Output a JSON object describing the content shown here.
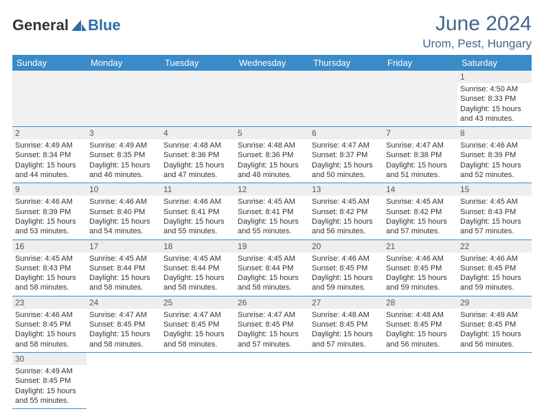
{
  "logo": {
    "text_a": "General",
    "text_b": "Blue"
  },
  "header": {
    "month_title": "June 2024",
    "location": "Urom, Pest, Hungary"
  },
  "colors": {
    "header_bg": "#3b8bc9",
    "header_text": "#ffffff",
    "title_color": "#40658a",
    "daynum_bg": "#eeeeee",
    "cell_border": "#3b8bc9",
    "empty_bg": "#f1f1f1"
  },
  "weekdays": [
    "Sunday",
    "Monday",
    "Tuesday",
    "Wednesday",
    "Thursday",
    "Friday",
    "Saturday"
  ],
  "grid": [
    [
      null,
      null,
      null,
      null,
      null,
      null,
      {
        "n": "1",
        "sr": "Sunrise: 4:50 AM",
        "ss": "Sunset: 8:33 PM",
        "d1": "Daylight: 15 hours",
        "d2": "and 43 minutes."
      }
    ],
    [
      {
        "n": "2",
        "sr": "Sunrise: 4:49 AM",
        "ss": "Sunset: 8:34 PM",
        "d1": "Daylight: 15 hours",
        "d2": "and 44 minutes."
      },
      {
        "n": "3",
        "sr": "Sunrise: 4:49 AM",
        "ss": "Sunset: 8:35 PM",
        "d1": "Daylight: 15 hours",
        "d2": "and 46 minutes."
      },
      {
        "n": "4",
        "sr": "Sunrise: 4:48 AM",
        "ss": "Sunset: 8:36 PM",
        "d1": "Daylight: 15 hours",
        "d2": "and 47 minutes."
      },
      {
        "n": "5",
        "sr": "Sunrise: 4:48 AM",
        "ss": "Sunset: 8:36 PM",
        "d1": "Daylight: 15 hours",
        "d2": "and 48 minutes."
      },
      {
        "n": "6",
        "sr": "Sunrise: 4:47 AM",
        "ss": "Sunset: 8:37 PM",
        "d1": "Daylight: 15 hours",
        "d2": "and 50 minutes."
      },
      {
        "n": "7",
        "sr": "Sunrise: 4:47 AM",
        "ss": "Sunset: 8:38 PM",
        "d1": "Daylight: 15 hours",
        "d2": "and 51 minutes."
      },
      {
        "n": "8",
        "sr": "Sunrise: 4:46 AM",
        "ss": "Sunset: 8:39 PM",
        "d1": "Daylight: 15 hours",
        "d2": "and 52 minutes."
      }
    ],
    [
      {
        "n": "9",
        "sr": "Sunrise: 4:46 AM",
        "ss": "Sunset: 8:39 PM",
        "d1": "Daylight: 15 hours",
        "d2": "and 53 minutes."
      },
      {
        "n": "10",
        "sr": "Sunrise: 4:46 AM",
        "ss": "Sunset: 8:40 PM",
        "d1": "Daylight: 15 hours",
        "d2": "and 54 minutes."
      },
      {
        "n": "11",
        "sr": "Sunrise: 4:46 AM",
        "ss": "Sunset: 8:41 PM",
        "d1": "Daylight: 15 hours",
        "d2": "and 55 minutes."
      },
      {
        "n": "12",
        "sr": "Sunrise: 4:45 AM",
        "ss": "Sunset: 8:41 PM",
        "d1": "Daylight: 15 hours",
        "d2": "and 55 minutes."
      },
      {
        "n": "13",
        "sr": "Sunrise: 4:45 AM",
        "ss": "Sunset: 8:42 PM",
        "d1": "Daylight: 15 hours",
        "d2": "and 56 minutes."
      },
      {
        "n": "14",
        "sr": "Sunrise: 4:45 AM",
        "ss": "Sunset: 8:42 PM",
        "d1": "Daylight: 15 hours",
        "d2": "and 57 minutes."
      },
      {
        "n": "15",
        "sr": "Sunrise: 4:45 AM",
        "ss": "Sunset: 8:43 PM",
        "d1": "Daylight: 15 hours",
        "d2": "and 57 minutes."
      }
    ],
    [
      {
        "n": "16",
        "sr": "Sunrise: 4:45 AM",
        "ss": "Sunset: 8:43 PM",
        "d1": "Daylight: 15 hours",
        "d2": "and 58 minutes."
      },
      {
        "n": "17",
        "sr": "Sunrise: 4:45 AM",
        "ss": "Sunset: 8:44 PM",
        "d1": "Daylight: 15 hours",
        "d2": "and 58 minutes."
      },
      {
        "n": "18",
        "sr": "Sunrise: 4:45 AM",
        "ss": "Sunset: 8:44 PM",
        "d1": "Daylight: 15 hours",
        "d2": "and 58 minutes."
      },
      {
        "n": "19",
        "sr": "Sunrise: 4:45 AM",
        "ss": "Sunset: 8:44 PM",
        "d1": "Daylight: 15 hours",
        "d2": "and 58 minutes."
      },
      {
        "n": "20",
        "sr": "Sunrise: 4:46 AM",
        "ss": "Sunset: 8:45 PM",
        "d1": "Daylight: 15 hours",
        "d2": "and 59 minutes."
      },
      {
        "n": "21",
        "sr": "Sunrise: 4:46 AM",
        "ss": "Sunset: 8:45 PM",
        "d1": "Daylight: 15 hours",
        "d2": "and 59 minutes."
      },
      {
        "n": "22",
        "sr": "Sunrise: 4:46 AM",
        "ss": "Sunset: 8:45 PM",
        "d1": "Daylight: 15 hours",
        "d2": "and 59 minutes."
      }
    ],
    [
      {
        "n": "23",
        "sr": "Sunrise: 4:46 AM",
        "ss": "Sunset: 8:45 PM",
        "d1": "Daylight: 15 hours",
        "d2": "and 58 minutes."
      },
      {
        "n": "24",
        "sr": "Sunrise: 4:47 AM",
        "ss": "Sunset: 8:45 PM",
        "d1": "Daylight: 15 hours",
        "d2": "and 58 minutes."
      },
      {
        "n": "25",
        "sr": "Sunrise: 4:47 AM",
        "ss": "Sunset: 8:45 PM",
        "d1": "Daylight: 15 hours",
        "d2": "and 58 minutes."
      },
      {
        "n": "26",
        "sr": "Sunrise: 4:47 AM",
        "ss": "Sunset: 8:45 PM",
        "d1": "Daylight: 15 hours",
        "d2": "and 57 minutes."
      },
      {
        "n": "27",
        "sr": "Sunrise: 4:48 AM",
        "ss": "Sunset: 8:45 PM",
        "d1": "Daylight: 15 hours",
        "d2": "and 57 minutes."
      },
      {
        "n": "28",
        "sr": "Sunrise: 4:48 AM",
        "ss": "Sunset: 8:45 PM",
        "d1": "Daylight: 15 hours",
        "d2": "and 56 minutes."
      },
      {
        "n": "29",
        "sr": "Sunrise: 4:49 AM",
        "ss": "Sunset: 8:45 PM",
        "d1": "Daylight: 15 hours",
        "d2": "and 56 minutes."
      }
    ],
    [
      {
        "n": "30",
        "sr": "Sunrise: 4:49 AM",
        "ss": "Sunset: 8:45 PM",
        "d1": "Daylight: 15 hours",
        "d2": "and 55 minutes."
      },
      null,
      null,
      null,
      null,
      null,
      null
    ]
  ]
}
